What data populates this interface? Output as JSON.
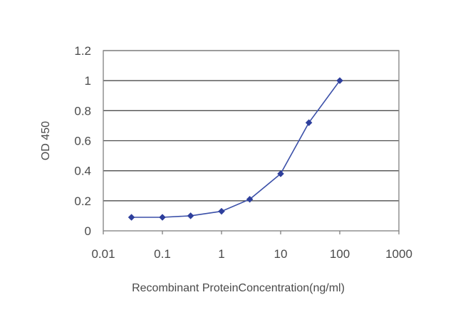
{
  "chart_data": {
    "type": "line",
    "title": "",
    "xlabel": "Recombinant ProteinConcentration(ng/ml)",
    "ylabel": "OD 450",
    "x_scale": "log",
    "xlim": [
      0.01,
      1000
    ],
    "ylim": [
      0,
      1.2
    ],
    "x_ticks": [
      "0.01",
      "0.1",
      "1",
      "10",
      "100",
      "1000"
    ],
    "y_ticks": [
      "0",
      "0.2",
      "0.4",
      "0.6",
      "0.8",
      "1",
      "1.2"
    ],
    "grid": "horizontal",
    "legend": "none",
    "series": [
      {
        "x": [
          0.03,
          0.1,
          0.3,
          1,
          3,
          10,
          30,
          100
        ],
        "y": [
          0.09,
          0.09,
          0.1,
          0.13,
          0.21,
          0.38,
          0.72,
          1.0
        ]
      }
    ],
    "colors": {
      "line": "#3a4fa8",
      "marker": "#2e3f9c",
      "grid": "#4d4d4d",
      "axis": "#808080"
    }
  }
}
